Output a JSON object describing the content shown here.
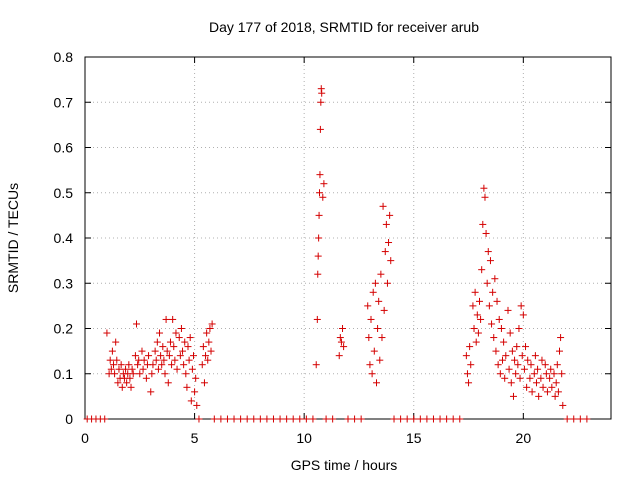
{
  "chart_data": {
    "type": "scatter",
    "title": "Day 177 of 2018, SRMTID for receiver arub",
    "xlabel": "GPS time / hours",
    "ylabel": "SRMTID / TECUs",
    "xlim": [
      0,
      24
    ],
    "ylim": [
      0,
      0.8
    ],
    "xticks": [
      0,
      5,
      10,
      15,
      20
    ],
    "yticks": [
      0,
      0.1,
      0.2,
      0.3,
      0.4,
      0.5,
      0.6,
      0.7,
      0.8
    ],
    "grid": true,
    "marker": "+",
    "color": "#d40000",
    "series": [
      {
        "name": "SRMTID",
        "points": [
          [
            0.1,
            0
          ],
          [
            0.3,
            0
          ],
          [
            0.5,
            0
          ],
          [
            0.7,
            0
          ],
          [
            0.9,
            0
          ],
          [
            1.0,
            0.19
          ],
          [
            1.1,
            0.1
          ],
          [
            1.15,
            0.13
          ],
          [
            1.2,
            0.11
          ],
          [
            1.25,
            0.15
          ],
          [
            1.3,
            0.12
          ],
          [
            1.35,
            0.1
          ],
          [
            1.4,
            0.17
          ],
          [
            1.45,
            0.13
          ],
          [
            1.5,
            0.08
          ],
          [
            1.55,
            0.11
          ],
          [
            1.6,
            0.09
          ],
          [
            1.65,
            0.12
          ],
          [
            1.7,
            0.07
          ],
          [
            1.75,
            0.1
          ],
          [
            1.8,
            0.09
          ],
          [
            1.85,
            0.11
          ],
          [
            1.9,
            0.08
          ],
          [
            1.95,
            0.1
          ],
          [
            2.0,
            0.12
          ],
          [
            2.05,
            0.09
          ],
          [
            2.1,
            0.07
          ],
          [
            2.15,
            0.11
          ],
          [
            2.2,
            0.1
          ],
          [
            2.3,
            0.14
          ],
          [
            2.35,
            0.21
          ],
          [
            2.4,
            0.12
          ],
          [
            2.45,
            0.13
          ],
          [
            2.5,
            0.1
          ],
          [
            2.6,
            0.15
          ],
          [
            2.65,
            0.11
          ],
          [
            2.7,
            0.13
          ],
          [
            2.8,
            0.09
          ],
          [
            2.85,
            0.12
          ],
          [
            2.9,
            0.14
          ],
          [
            3.0,
            0.06
          ],
          [
            3.05,
            0.1
          ],
          [
            3.1,
            0.12
          ],
          [
            3.2,
            0.15
          ],
          [
            3.25,
            0.13
          ],
          [
            3.3,
            0.17
          ],
          [
            3.35,
            0.11
          ],
          [
            3.4,
            0.19
          ],
          [
            3.45,
            0.14
          ],
          [
            3.5,
            0.12
          ],
          [
            3.55,
            0.16
          ],
          [
            3.6,
            0.13
          ],
          [
            3.65,
            0.1
          ],
          [
            3.7,
            0.22
          ],
          [
            3.75,
            0.15
          ],
          [
            3.8,
            0.08
          ],
          [
            3.85,
            0.14
          ],
          [
            3.9,
            0.17
          ],
          [
            3.95,
            0.12
          ],
          [
            4.0,
            0.22
          ],
          [
            4.05,
            0.16
          ],
          [
            4.1,
            0.13
          ],
          [
            4.15,
            0.19
          ],
          [
            4.2,
            0.11
          ],
          [
            4.3,
            0.18
          ],
          [
            4.35,
            0.14
          ],
          [
            4.4,
            0.2
          ],
          [
            4.45,
            0.15
          ],
          [
            4.5,
            0.12
          ],
          [
            4.55,
            0.17
          ],
          [
            4.6,
            0.1
          ],
          [
            4.65,
            0.07
          ],
          [
            4.7,
            0.16
          ],
          [
            4.75,
            0.13
          ],
          [
            4.8,
            0.18
          ],
          [
            4.85,
            0.04
          ],
          [
            4.9,
            0.11
          ],
          [
            4.95,
            0.14
          ],
          [
            5.0,
            0.06
          ],
          [
            5.05,
            0.09
          ],
          [
            5.1,
            0.03
          ],
          [
            5.2,
            0
          ],
          [
            5.35,
            0.12
          ],
          [
            5.4,
            0.16
          ],
          [
            5.45,
            0.08
          ],
          [
            5.5,
            0.14
          ],
          [
            5.55,
            0.19
          ],
          [
            5.6,
            0.13
          ],
          [
            5.65,
            0.17
          ],
          [
            5.7,
            0.2
          ],
          [
            5.75,
            0.15
          ],
          [
            5.8,
            0.21
          ],
          [
            5.9,
            0
          ],
          [
            6.2,
            0
          ],
          [
            6.5,
            0
          ],
          [
            6.8,
            0
          ],
          [
            7.1,
            0
          ],
          [
            7.4,
            0
          ],
          [
            7.7,
            0
          ],
          [
            8.0,
            0
          ],
          [
            8.3,
            0
          ],
          [
            8.6,
            0
          ],
          [
            8.9,
            0
          ],
          [
            9.2,
            0
          ],
          [
            9.5,
            0
          ],
          [
            9.8,
            0
          ],
          [
            10.1,
            0
          ],
          [
            10.4,
            0
          ],
          [
            10.55,
            0.12
          ],
          [
            10.6,
            0.22
          ],
          [
            10.62,
            0.32
          ],
          [
            10.64,
            0.36
          ],
          [
            10.66,
            0.4
          ],
          [
            10.68,
            0.45
          ],
          [
            10.7,
            0.5
          ],
          [
            10.72,
            0.54
          ],
          [
            10.74,
            0.64
          ],
          [
            10.76,
            0.7
          ],
          [
            10.78,
            0.73
          ],
          [
            10.8,
            0.72
          ],
          [
            10.85,
            0.49
          ],
          [
            10.9,
            0.52
          ],
          [
            11.0,
            0
          ],
          [
            11.3,
            0
          ],
          [
            11.6,
            0.14
          ],
          [
            11.65,
            0.18
          ],
          [
            11.7,
            0.17
          ],
          [
            11.75,
            0.2
          ],
          [
            11.8,
            0.16
          ],
          [
            12.0,
            0
          ],
          [
            12.3,
            0
          ],
          [
            12.6,
            0
          ],
          [
            12.9,
            0.25
          ],
          [
            12.95,
            0.18
          ],
          [
            13.0,
            0.12
          ],
          [
            13.05,
            0.22
          ],
          [
            13.1,
            0.1
          ],
          [
            13.15,
            0.28
          ],
          [
            13.2,
            0.15
          ],
          [
            13.25,
            0.3
          ],
          [
            13.3,
            0.08
          ],
          [
            13.35,
            0.2
          ],
          [
            13.4,
            0.26
          ],
          [
            13.45,
            0.13
          ],
          [
            13.5,
            0.32
          ],
          [
            13.55,
            0.18
          ],
          [
            13.6,
            0.47
          ],
          [
            13.65,
            0.24
          ],
          [
            13.7,
            0.37
          ],
          [
            13.75,
            0.43
          ],
          [
            13.8,
            0.3
          ],
          [
            13.85,
            0.39
          ],
          [
            13.9,
            0.45
          ],
          [
            13.95,
            0.35
          ],
          [
            14.1,
            0
          ],
          [
            14.4,
            0
          ],
          [
            14.7,
            0
          ],
          [
            15.0,
            0
          ],
          [
            15.3,
            0
          ],
          [
            15.6,
            0
          ],
          [
            15.9,
            0
          ],
          [
            16.2,
            0
          ],
          [
            16.5,
            0
          ],
          [
            16.8,
            0
          ],
          [
            17.1,
            0
          ],
          [
            17.4,
            0.14
          ],
          [
            17.45,
            0.1
          ],
          [
            17.5,
            0.08
          ],
          [
            17.55,
            0.16
          ],
          [
            17.6,
            0.12
          ],
          [
            17.7,
            0.25
          ],
          [
            17.75,
            0.2
          ],
          [
            17.8,
            0.28
          ],
          [
            17.85,
            0.17
          ],
          [
            17.9,
            0.23
          ],
          [
            17.95,
            0.19
          ],
          [
            18.0,
            0.26
          ],
          [
            18.05,
            0.22
          ],
          [
            18.1,
            0.33
          ],
          [
            18.15,
            0.43
          ],
          [
            18.2,
            0.51
          ],
          [
            18.25,
            0.49
          ],
          [
            18.3,
            0.41
          ],
          [
            18.35,
            0.3
          ],
          [
            18.4,
            0.37
          ],
          [
            18.45,
            0.25
          ],
          [
            18.5,
            0.35
          ],
          [
            18.55,
            0.21
          ],
          [
            18.6,
            0.28
          ],
          [
            18.65,
            0.18
          ],
          [
            18.7,
            0.31
          ],
          [
            18.75,
            0.15
          ],
          [
            18.8,
            0.26
          ],
          [
            18.85,
            0.12
          ],
          [
            18.9,
            0.22
          ],
          [
            18.95,
            0.1
          ],
          [
            19.0,
            0.2
          ],
          [
            19.05,
            0.13
          ],
          [
            19.1,
            0.17
          ],
          [
            19.15,
            0.09
          ],
          [
            19.2,
            0.14
          ],
          [
            19.3,
            0.24
          ],
          [
            19.35,
            0.11
          ],
          [
            19.4,
            0.19
          ],
          [
            19.45,
            0.08
          ],
          [
            19.5,
            0.15
          ],
          [
            19.55,
            0.05
          ],
          [
            19.6,
            0.13
          ],
          [
            19.65,
            0.1
          ],
          [
            19.7,
            0.16
          ],
          [
            19.75,
            0.12
          ],
          [
            19.8,
            0.2
          ],
          [
            19.85,
            0.09
          ],
          [
            19.9,
            0.25
          ],
          [
            19.95,
            0.14
          ],
          [
            20.0,
            0.23
          ],
          [
            20.05,
            0.11
          ],
          [
            20.1,
            0.16
          ],
          [
            20.15,
            0.07
          ],
          [
            20.2,
            0.13
          ],
          [
            20.3,
            0.09
          ],
          [
            20.35,
            0.12
          ],
          [
            20.4,
            0.06
          ],
          [
            20.5,
            0.1
          ],
          [
            20.55,
            0.14
          ],
          [
            20.6,
            0.08
          ],
          [
            20.65,
            0.11
          ],
          [
            20.7,
            0.05
          ],
          [
            20.8,
            0.09
          ],
          [
            20.85,
            0.13
          ],
          [
            20.9,
            0.07
          ],
          [
            21.0,
            0.12
          ],
          [
            21.05,
            0.1
          ],
          [
            21.1,
            0.06
          ],
          [
            21.2,
            0.09
          ],
          [
            21.25,
            0.11
          ],
          [
            21.3,
            0.07
          ],
          [
            21.4,
            0.1
          ],
          [
            21.45,
            0.05
          ],
          [
            21.5,
            0.08
          ],
          [
            21.55,
            0.12
          ],
          [
            21.6,
            0.06
          ],
          [
            21.65,
            0.15
          ],
          [
            21.7,
            0.18
          ],
          [
            21.75,
            0.1
          ],
          [
            21.8,
            0.03
          ],
          [
            22.0,
            0
          ],
          [
            22.3,
            0
          ],
          [
            22.6,
            0
          ],
          [
            22.9,
            0
          ]
        ]
      }
    ]
  }
}
